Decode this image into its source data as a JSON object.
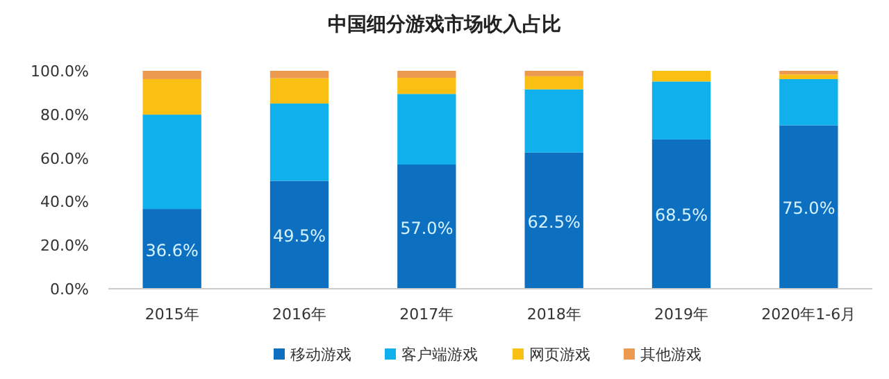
{
  "chart_data": {
    "type": "bar",
    "title": "中国细分游戏市场收入占比",
    "stacked": true,
    "categories": [
      "2015年",
      "2016年",
      "2017年",
      "2018年",
      "2019年",
      "2020年1-6月"
    ],
    "series": [
      {
        "name": "移动游戏",
        "color": "#0d6fc0",
        "values": [
          36.6,
          49.5,
          57.0,
          62.5,
          68.5,
          75.0
        ],
        "value_labels": [
          "36.6%",
          "49.5%",
          "57.0%",
          "62.5%",
          "68.5%",
          "75.0%"
        ]
      },
      {
        "name": "客户端游戏",
        "color": "#10b0ec",
        "values": [
          43.3,
          35.5,
          32.4,
          29.0,
          26.6,
          21.2
        ]
      },
      {
        "name": "网页游戏",
        "color": "#f9c013",
        "values": [
          16.3,
          11.6,
          7.4,
          6.0,
          4.9,
          2.1
        ]
      },
      {
        "name": "其他游戏",
        "color": "#ec9a50",
        "values": [
          3.8,
          3.4,
          3.2,
          2.5,
          0,
          1.7
        ]
      }
    ],
    "ylim": [
      0,
      100
    ],
    "yticks": [
      {
        "value": 0,
        "label": "0.0%"
      },
      {
        "value": 20,
        "label": "20.0%"
      },
      {
        "value": 40,
        "label": "40.0%"
      },
      {
        "value": 60,
        "label": "60.0%"
      },
      {
        "value": 80,
        "label": "80.0%"
      },
      {
        "value": 100,
        "label": "100.0%"
      }
    ],
    "legend": "bottom",
    "grid": false
  }
}
